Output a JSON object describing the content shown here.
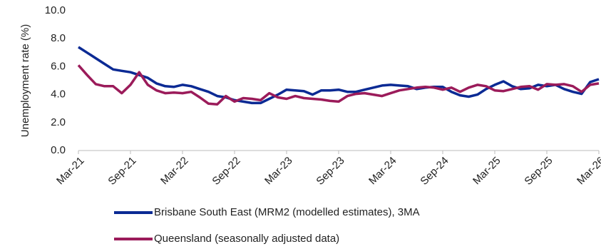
{
  "chart_data": {
    "type": "line",
    "y_label": "Unemployment rate (%)",
    "categories": [
      "Mar-21",
      null,
      null,
      null,
      null,
      null,
      "Sep-21",
      null,
      null,
      null,
      null,
      null,
      "Mar-22",
      null,
      null,
      null,
      null,
      null,
      "Sep-22",
      null,
      null,
      null,
      null,
      null,
      "Mar-23",
      null,
      null,
      null,
      null,
      null,
      "Sep-23",
      null,
      null,
      null,
      null,
      null,
      "Mar-24",
      null,
      null,
      null,
      null,
      null,
      "Sep-24",
      null,
      null,
      null,
      null,
      null,
      "Mar-25",
      null,
      null,
      null,
      null,
      null,
      "Sep-25",
      null,
      null,
      null,
      null,
      null,
      "Mar-26"
    ],
    "series": [
      {
        "name": "Brisbane South East (MRM2 (modelled estimates), 3MA",
        "color": "#0b2a94",
        "values": [
          7.4,
          7.0,
          6.6,
          6.2,
          5.8,
          5.7,
          5.6,
          5.4,
          5.2,
          4.8,
          4.6,
          4.55,
          4.7,
          4.6,
          4.4,
          4.2,
          3.9,
          3.8,
          3.6,
          3.5,
          3.4,
          3.4,
          3.7,
          4.0,
          4.35,
          4.3,
          4.25,
          4.0,
          4.3,
          4.3,
          4.35,
          4.2,
          4.2,
          4.35,
          4.5,
          4.65,
          4.7,
          4.65,
          4.6,
          4.4,
          4.5,
          4.55,
          4.55,
          4.2,
          3.95,
          3.85,
          4.0,
          4.4,
          4.7,
          4.95,
          4.6,
          4.4,
          4.45,
          4.7,
          4.6,
          4.7,
          4.4,
          4.2,
          4.05,
          4.9,
          5.1
        ]
      },
      {
        "name": "Queensland (seasonally adjusted data)",
        "color": "#9b1b5a",
        "values": [
          6.1,
          5.4,
          4.75,
          4.6,
          4.6,
          4.1,
          4.7,
          5.6,
          4.7,
          4.3,
          4.1,
          4.15,
          4.1,
          4.2,
          3.8,
          3.35,
          3.3,
          3.9,
          3.5,
          3.75,
          3.7,
          3.6,
          4.1,
          3.8,
          3.7,
          3.9,
          3.75,
          3.7,
          3.65,
          3.55,
          3.5,
          3.9,
          4.05,
          4.1,
          4.0,
          3.9,
          4.1,
          4.3,
          4.4,
          4.5,
          4.55,
          4.5,
          4.35,
          4.5,
          4.2,
          4.5,
          4.7,
          4.6,
          4.3,
          4.25,
          4.4,
          4.55,
          4.6,
          4.35,
          4.75,
          4.7,
          4.75,
          4.6,
          4.2,
          4.7,
          4.8
        ]
      }
    ],
    "ylim": [
      0,
      10
    ],
    "yticks": [
      {
        "value": 0,
        "label": "0.0"
      },
      {
        "value": 2,
        "label": "2.0"
      },
      {
        "value": 4,
        "label": "4.0"
      },
      {
        "value": 6,
        "label": "6.0"
      },
      {
        "value": 8,
        "label": "8.0"
      },
      {
        "value": 10,
        "label": "10.0"
      }
    ],
    "grid": false
  }
}
